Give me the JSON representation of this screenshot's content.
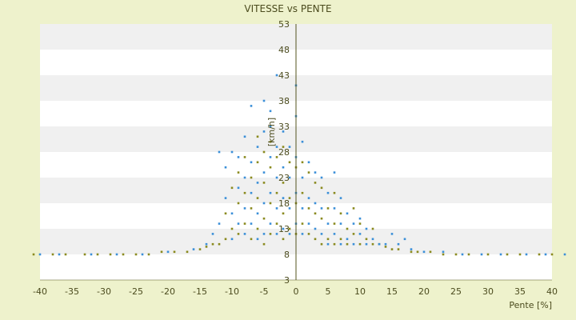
{
  "chart_data": {
    "type": "scatter",
    "title": "VITESSE vs PENTE",
    "xlabel": "Pente [%]",
    "ylabel": "[km/h]",
    "xlim": [
      -40,
      40
    ],
    "ylim": [
      3,
      53
    ],
    "x_ticks": [
      -40,
      -35,
      -30,
      -25,
      -20,
      -15,
      -10,
      -5,
      0,
      5,
      10,
      15,
      20,
      25,
      30,
      35,
      40
    ],
    "y_ticks": [
      3,
      8,
      13,
      18,
      23,
      28,
      33,
      38,
      43,
      48,
      53
    ],
    "grid": true,
    "legend": "none",
    "colors": {
      "background": "#eef2cc",
      "plot_band_light": "#ffffff",
      "plot_band_dark": "#f0f0f0",
      "series_1": "#3a8fd8",
      "series_2": "#8a8a1e",
      "axis": "#55551e"
    },
    "series": [
      {
        "color": "#8a8a1e",
        "points": [
          [
            -41,
            8
          ],
          [
            -38,
            8
          ],
          [
            -36,
            8
          ],
          [
            -33,
            8
          ],
          [
            -31,
            8
          ],
          [
            -29,
            8
          ],
          [
            -27,
            8
          ],
          [
            -25,
            8
          ],
          [
            -23,
            8
          ],
          [
            -21,
            8.5
          ],
          [
            -19,
            8.5
          ],
          [
            -17,
            8.5
          ],
          [
            -15,
            9
          ],
          [
            -14,
            9.5
          ],
          [
            -13,
            10
          ],
          [
            -12,
            10
          ],
          [
            -11,
            11
          ],
          [
            -11,
            16
          ],
          [
            -10,
            13
          ],
          [
            -10,
            21
          ],
          [
            -9,
            12
          ],
          [
            -9,
            18
          ],
          [
            -9,
            24
          ],
          [
            -8,
            14
          ],
          [
            -8,
            20
          ],
          [
            -8,
            27
          ],
          [
            -7,
            11
          ],
          [
            -7,
            17
          ],
          [
            -7,
            23
          ],
          [
            -6,
            13
          ],
          [
            -6,
            19
          ],
          [
            -6,
            26
          ],
          [
            -6,
            31
          ],
          [
            -5,
            10
          ],
          [
            -5,
            15
          ],
          [
            -5,
            22
          ],
          [
            -5,
            28
          ],
          [
            -4,
            12
          ],
          [
            -4,
            18
          ],
          [
            -4,
            25
          ],
          [
            -4,
            30
          ],
          [
            -3,
            14
          ],
          [
            -3,
            20
          ],
          [
            -3,
            27
          ],
          [
            -2,
            11
          ],
          [
            -2,
            16
          ],
          [
            -2,
            22
          ],
          [
            -2,
            29
          ],
          [
            -1,
            13
          ],
          [
            -1,
            19
          ],
          [
            -1,
            26
          ],
          [
            0,
            12
          ],
          [
            0,
            18
          ],
          [
            0,
            25
          ],
          [
            1,
            14
          ],
          [
            1,
            20
          ],
          [
            1,
            26
          ],
          [
            2,
            12
          ],
          [
            2,
            17
          ],
          [
            2,
            24
          ],
          [
            3,
            11
          ],
          [
            3,
            16
          ],
          [
            3,
            22
          ],
          [
            4,
            10
          ],
          [
            4,
            15
          ],
          [
            4,
            21
          ],
          [
            5,
            11
          ],
          [
            5,
            17
          ],
          [
            6,
            10
          ],
          [
            6,
            14
          ],
          [
            6,
            20
          ],
          [
            7,
            11
          ],
          [
            7,
            16
          ],
          [
            8,
            10
          ],
          [
            8,
            13
          ],
          [
            9,
            12
          ],
          [
            9,
            17
          ],
          [
            10,
            10
          ],
          [
            10,
            14
          ],
          [
            11,
            11
          ],
          [
            12,
            10
          ],
          [
            12,
            13
          ],
          [
            13,
            10
          ],
          [
            14,
            9.5
          ],
          [
            15,
            9
          ],
          [
            16,
            9
          ],
          [
            18,
            8.5
          ],
          [
            19,
            8.5
          ],
          [
            21,
            8.5
          ],
          [
            23,
            8
          ],
          [
            25,
            8
          ],
          [
            27,
            8
          ],
          [
            30,
            8
          ],
          [
            33,
            8
          ],
          [
            35,
            8
          ],
          [
            38,
            8
          ],
          [
            40,
            8
          ]
        ]
      },
      {
        "color": "#3a8fd8",
        "points": [
          [
            -40,
            8
          ],
          [
            -37,
            8
          ],
          [
            -32,
            8
          ],
          [
            -28,
            8
          ],
          [
            -24,
            8
          ],
          [
            -20,
            8.5
          ],
          [
            -16,
            9
          ],
          [
            -14,
            10
          ],
          [
            -13,
            12
          ],
          [
            -12,
            28
          ],
          [
            -12,
            14
          ],
          [
            -11,
            19
          ],
          [
            -11,
            25
          ],
          [
            -10,
            11
          ],
          [
            -10,
            16
          ],
          [
            -10,
            28
          ],
          [
            -9,
            14
          ],
          [
            -9,
            21
          ],
          [
            -9,
            27
          ],
          [
            -8,
            12
          ],
          [
            -8,
            17
          ],
          [
            -8,
            23
          ],
          [
            -8,
            31
          ],
          [
            -7,
            14
          ],
          [
            -7,
            20
          ],
          [
            -7,
            26
          ],
          [
            -7,
            37
          ],
          [
            -6,
            11
          ],
          [
            -6,
            16
          ],
          [
            -6,
            22
          ],
          [
            -6,
            29
          ],
          [
            -5,
            12
          ],
          [
            -5,
            18
          ],
          [
            -5,
            24
          ],
          [
            -5,
            32
          ],
          [
            -5,
            38
          ],
          [
            -4,
            14
          ],
          [
            -4,
            20
          ],
          [
            -4,
            27
          ],
          [
            -4,
            33
          ],
          [
            -4,
            36
          ],
          [
            -3,
            12
          ],
          [
            -3,
            17
          ],
          [
            -3,
            23
          ],
          [
            -3,
            29
          ],
          [
            -3,
            43
          ],
          [
            -2,
            13
          ],
          [
            -2,
            19
          ],
          [
            -2,
            25
          ],
          [
            -2,
            32
          ],
          [
            -1,
            12
          ],
          [
            -1,
            17
          ],
          [
            -1,
            23
          ],
          [
            -1,
            29
          ],
          [
            0,
            14
          ],
          [
            0,
            20
          ],
          [
            0,
            27
          ],
          [
            0,
            35
          ],
          [
            0,
            41
          ],
          [
            1,
            12
          ],
          [
            1,
            17
          ],
          [
            1,
            23
          ],
          [
            1,
            30
          ],
          [
            2,
            14
          ],
          [
            2,
            19
          ],
          [
            2,
            26
          ],
          [
            3,
            13
          ],
          [
            3,
            18
          ],
          [
            3,
            24
          ],
          [
            4,
            12
          ],
          [
            4,
            17
          ],
          [
            4,
            23
          ],
          [
            5,
            10
          ],
          [
            5,
            14
          ],
          [
            5,
            20
          ],
          [
            6,
            12
          ],
          [
            6,
            17
          ],
          [
            6,
            24
          ],
          [
            7,
            10
          ],
          [
            7,
            14
          ],
          [
            7,
            19
          ],
          [
            8,
            11
          ],
          [
            8,
            16
          ],
          [
            9,
            10
          ],
          [
            9,
            14
          ],
          [
            10,
            12
          ],
          [
            10,
            15
          ],
          [
            11,
            10
          ],
          [
            11,
            13
          ],
          [
            12,
            11
          ],
          [
            13,
            10
          ],
          [
            14,
            10
          ],
          [
            15,
            12
          ],
          [
            16,
            10
          ],
          [
            17,
            11
          ],
          [
            18,
            9
          ],
          [
            20,
            8.5
          ],
          [
            23,
            8.5
          ],
          [
            26,
            8
          ],
          [
            29,
            8
          ],
          [
            32,
            8
          ],
          [
            36,
            8
          ],
          [
            39,
            8
          ],
          [
            42,
            8
          ]
        ]
      }
    ]
  }
}
